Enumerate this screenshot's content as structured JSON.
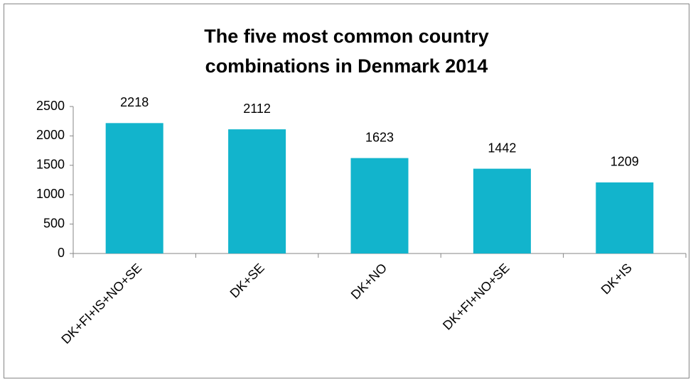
{
  "chart_data": {
    "type": "bar",
    "title": "The five most common country combinations in Denmark 2014",
    "categories": [
      "DK+FI+IS+NO+SE",
      "DK+SE",
      "DK+NO",
      "DK+FI+NO+SE",
      "DK+IS"
    ],
    "values": [
      2218,
      2112,
      1623,
      1442,
      1209
    ],
    "color": "#12b4cc",
    "ylim": [
      0,
      2500
    ],
    "yticks": [
      0,
      500,
      1000,
      1500,
      2000,
      2500
    ],
    "grid": false
  }
}
